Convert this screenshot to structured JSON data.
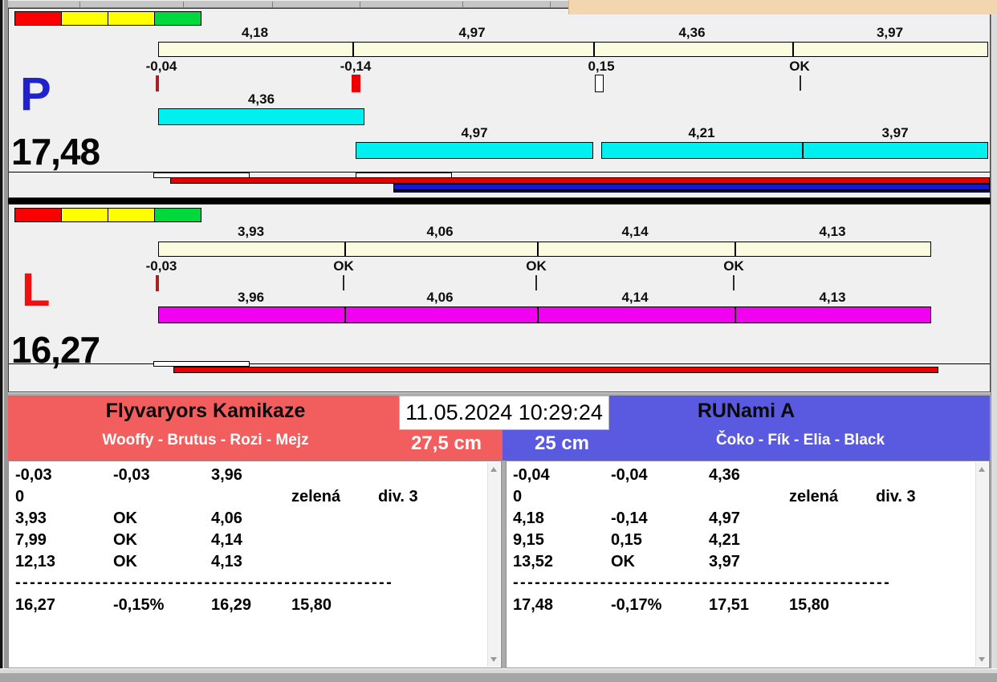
{
  "datetime": "11.05.2024 10:29:24",
  "colors": {
    "panel_bg": "#f0f0f0",
    "cream_bar": "#fbfbdf",
    "cyan_bar": "#00efef",
    "magenta_bar": "#f200f2",
    "status_red": "#fb0000",
    "status_yellow": "#ffff00",
    "status_green": "#00d93c",
    "lane_p_letter": "#2222cc",
    "lane_l_letter": "#ee1111",
    "red_progress": "#e60000",
    "blue_progress": "#1616d6",
    "team_left_header": "#f25e5e",
    "team_right_header": "#5a5ae0",
    "peach_strip": "#f3d5b0"
  },
  "lane_p": {
    "letter": "P",
    "total": "17,48",
    "status_lights": [
      "red",
      "yellow",
      "yellow",
      "green"
    ],
    "segment_labels": [
      "4,18",
      "4,97",
      "4,36",
      "3,97"
    ],
    "start_labels": [
      "-0,04",
      "-0,14",
      "0,15",
      "OK"
    ],
    "first_dog_label": "4,36",
    "running_labels": [
      "4,97",
      "4,21",
      "3,97"
    ]
  },
  "lane_l": {
    "letter": "L",
    "total": "16,27",
    "status_lights": [
      "red",
      "yellow",
      "yellow",
      "green"
    ],
    "segment_labels": [
      "3,93",
      "4,06",
      "4,14",
      "4,13"
    ],
    "start_labels": [
      "-0,03",
      "OK",
      "OK",
      "OK"
    ],
    "running_labels": [
      "3,96",
      "4,06",
      "4,14",
      "4,13"
    ]
  },
  "team_left": {
    "name": "Flyvaryors Kamikaze",
    "dogs": "Wooffy - Brutus - Rozi - Mejz",
    "height": "27,5 cm",
    "rows": [
      [
        "-0,03",
        "-0,03",
        "3,96",
        "",
        ""
      ],
      [
        "0",
        "",
        "",
        "zelená",
        "div. 3"
      ],
      [
        "3,93",
        "OK",
        "4,06",
        "",
        ""
      ],
      [
        "7,99",
        "OK",
        "4,14",
        "",
        ""
      ],
      [
        "12,13",
        "OK",
        "4,13",
        "",
        ""
      ]
    ],
    "separator": "----------------------------------------------------",
    "totals": [
      "16,27",
      "-0,15%",
      "16,29",
      "15,80",
      ""
    ]
  },
  "team_right": {
    "name": "RUNami A",
    "dogs": "Čoko - Fík - Elia - Black",
    "height": "25 cm",
    "rows": [
      [
        "-0,04",
        "-0,04",
        "4,36",
        "",
        ""
      ],
      [
        "0",
        "",
        "",
        "zelená",
        "div. 3"
      ],
      [
        "4,18",
        "-0,14",
        "4,97",
        "",
        ""
      ],
      [
        "9,15",
        "0,15",
        "4,21",
        "",
        ""
      ],
      [
        "13,52",
        "OK",
        "3,97",
        "",
        ""
      ]
    ],
    "separator": "----------------------------------------------------",
    "totals": [
      "17,48",
      "-0,17%",
      "17,51",
      "15,80",
      ""
    ]
  }
}
